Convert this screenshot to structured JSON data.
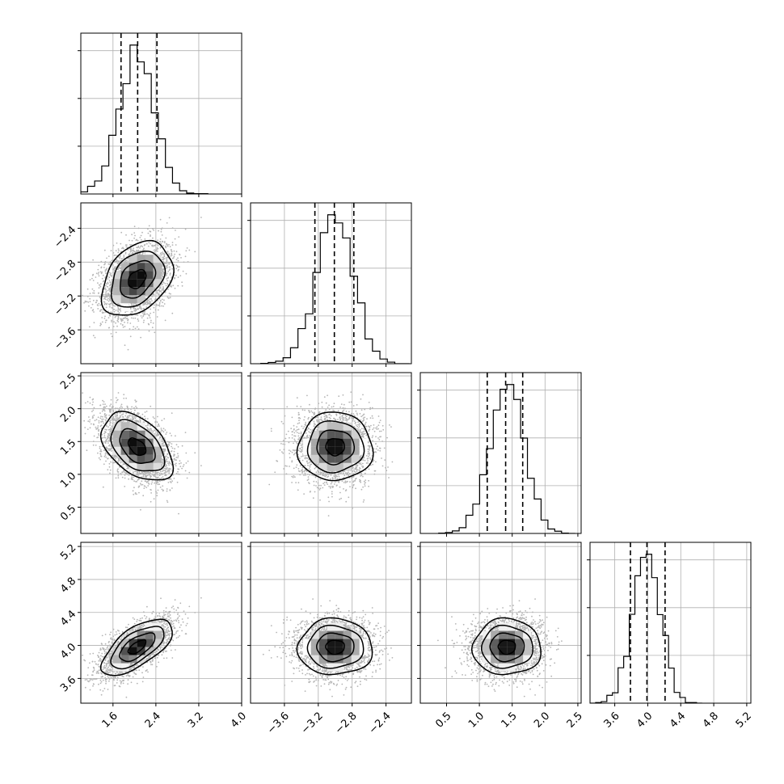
{
  "chart_data": {
    "type": "corner",
    "parameters": [
      {
        "range": [
          1.0,
          4.0
        ],
        "ticks": [
          1.6,
          2.4,
          3.2,
          4.0
        ],
        "tick_labels": [
          "1.6",
          "2.4",
          "3.2",
          "4.0"
        ],
        "mean": 2.05,
        "sd": 0.33,
        "quantiles": [
          1.75,
          2.06,
          2.42
        ]
      },
      {
        "range": [
          -4.0,
          -2.1
        ],
        "ticks": [
          -3.6,
          -3.2,
          -2.8,
          -2.4
        ],
        "tick_labels": [
          "−3.6",
          "−3.2",
          "−2.8",
          "−2.4"
        ],
        "mean": -3.0,
        "sd": 0.22,
        "quantiles": [
          -3.24,
          -3.01,
          -2.78
        ]
      },
      {
        "range": [
          0.1,
          2.55
        ],
        "ticks": [
          0.5,
          1.0,
          1.5,
          2.0,
          2.5
        ],
        "tick_labels": [
          "0.5",
          "1.0",
          "1.5",
          "2.0",
          "2.5"
        ],
        "mean": 1.42,
        "sd": 0.26,
        "quantiles": [
          1.12,
          1.4,
          1.66
        ]
      },
      {
        "range": [
          3.3,
          5.25
        ],
        "ticks": [
          3.6,
          4.0,
          4.4,
          4.8,
          5.2
        ],
        "tick_labels": [
          "3.6",
          "4.0",
          "4.4",
          "4.8",
          "5.2"
        ],
        "mean": 3.98,
        "sd": 0.17,
        "quantiles": [
          3.79,
          3.99,
          4.21
        ]
      }
    ],
    "pair_correlations": {
      "1-0": 0.35,
      "2-0": -0.45,
      "2-1": 0.0,
      "3-0": 0.65,
      "3-1": 0.0,
      "3-2": 0.0
    },
    "contour_levels_sigma": [
      0.5,
      1.0,
      1.5,
      2.0
    ],
    "histogram_bins": 20,
    "grid": true,
    "colors": {
      "line": "#000000",
      "scatter": "#b5b5b5",
      "grid": "#b0b0b0"
    }
  }
}
